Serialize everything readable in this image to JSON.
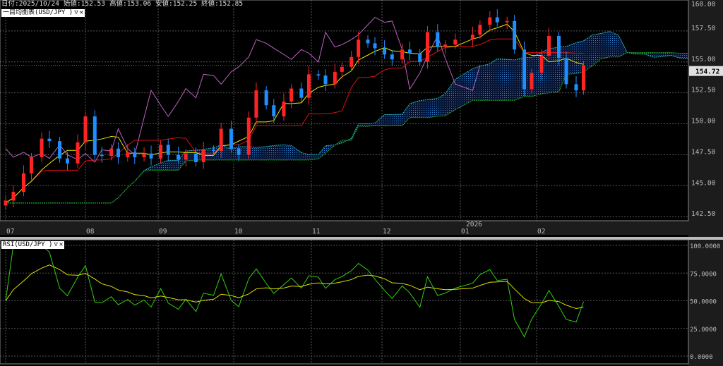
{
  "header": {
    "date_label": "日付:2025/10/24",
    "open_label": "始値:152.53",
    "high_label": "高値:153.06",
    "low_label": "安値:152.25",
    "close_label": "終値:152.85"
  },
  "main_panel": {
    "title": "一目均衡表(USD/JPY )",
    "menu_glyph": "▽",
    "close_glyph": "✕"
  },
  "rsi_panel": {
    "title": "RSI(USD/JPY )",
    "menu_glyph": "▽",
    "close_glyph": "✕"
  },
  "colors": {
    "up": "#ff2424",
    "down": "#1e8fff",
    "tenkan": "#e8e800",
    "kijun": "#e01010",
    "chikou": "#c060c0",
    "span_a": "#20c0c0",
    "span_b": "#20b020",
    "cloud": "#2a7fd0",
    "rsi": "#30d010",
    "rsi_signal": "#e0e000"
  },
  "chart_data": [
    {
      "type": "candlestick",
      "title": "一目均衡表(USD/JPY )",
      "ylim": [
        142.0,
        160.0
      ],
      "y_ticks": [
        "160.00",
        "157.50",
        "155.00",
        "152.50",
        "150.00",
        "147.50",
        "145.00",
        "142.50"
      ],
      "x_ticks": [
        {
          "date": "2025-07-01",
          "label": "07"
        },
        {
          "date": "2025-08-01",
          "label": "08"
        },
        {
          "date": "2025-09-01",
          "label": "09"
        },
        {
          "date": "2025-10-01",
          "label": "10"
        },
        {
          "date": "2025-11-01",
          "label": "11"
        },
        {
          "date": "2025-12-01",
          "label": "12"
        },
        {
          "date": "2026-01-01",
          "label": "01"
        },
        {
          "date": "2026-02-01",
          "label": "02"
        }
      ],
      "year_label": "2026",
      "last_price": "154.72",
      "grid": true,
      "x": [
        "2025-07-01",
        "2025-07-04",
        "2025-07-08",
        "2025-07-11",
        "2025-07-15",
        "2025-07-18",
        "2025-07-22",
        "2025-07-25",
        "2025-07-29",
        "2025-08-01",
        "2025-08-05",
        "2025-08-08",
        "2025-08-12",
        "2025-08-15",
        "2025-08-19",
        "2025-08-22",
        "2025-08-26",
        "2025-08-29",
        "2025-09-02",
        "2025-09-05",
        "2025-09-09",
        "2025-09-12",
        "2025-09-16",
        "2025-09-19",
        "2025-09-23",
        "2025-09-26",
        "2025-09-30",
        "2025-10-03",
        "2025-10-07",
        "2025-10-10",
        "2025-10-14",
        "2025-10-17",
        "2025-10-21",
        "2025-10-24",
        "2025-10-28",
        "2025-10-31",
        "2025-11-04",
        "2025-11-07",
        "2025-11-11",
        "2025-11-14",
        "2025-11-18",
        "2025-11-21",
        "2025-11-25",
        "2025-11-28",
        "2025-12-02",
        "2025-12-05",
        "2025-12-09",
        "2025-12-12",
        "2025-12-16",
        "2025-12-19",
        "2025-12-23",
        "2025-12-26",
        "2025-12-30",
        "2026-01-06",
        "2026-01-09",
        "2026-01-13",
        "2026-01-16",
        "2026-01-20",
        "2026-01-23",
        "2026-01-27",
        "2026-01-30",
        "2026-02-03",
        "2026-02-06",
        "2026-02-10",
        "2026-02-13",
        "2026-02-17",
        "2026-02-20"
      ],
      "close": [
        143.8,
        144.5,
        146.0,
        147.3,
        148.8,
        148.6,
        147.2,
        146.8,
        148.5,
        150.6,
        147.5,
        147.4,
        148.0,
        147.3,
        147.7,
        147.3,
        147.6,
        147.2,
        148.3,
        147.5,
        147.1,
        147.6,
        146.9,
        147.9,
        147.8,
        149.6,
        148.0,
        147.5,
        150.5,
        152.7,
        151.5,
        150.6,
        151.8,
        152.85,
        152.1,
        154.0,
        153.9,
        153.2,
        154.2,
        154.6,
        155.4,
        156.8,
        156.5,
        156.1,
        155.6,
        155.2,
        156.0,
        155.7,
        155.0,
        157.4,
        156.2,
        156.4,
        156.8,
        157.2,
        158.0,
        158.6,
        158.2,
        158.3,
        156.0,
        152.8,
        154.1,
        155.5,
        157.1,
        155.3,
        153.2,
        152.7,
        154.72
      ]
    },
    {
      "type": "line",
      "title": "RSI(USD/JPY )",
      "ylim": [
        0,
        100
      ],
      "y_ticks": [
        "100.0000",
        "75.0000",
        "50.0000",
        "25.0000",
        "0.0000"
      ],
      "grid": true
    }
  ]
}
